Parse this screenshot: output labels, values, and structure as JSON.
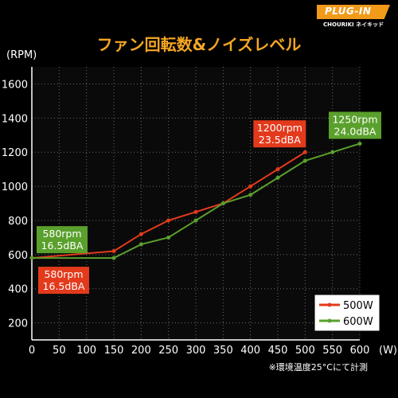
{
  "logo": {
    "brand": "PLUG-IN",
    "sub": "CHOURIKI ネイキッド"
  },
  "title": "ファン回転数&ノイズレベル",
  "chart_data": {
    "type": "line",
    "title": "ファン回転数&ノイズレベル",
    "ylabel": "(RPM)",
    "xlabel": "(W)",
    "xlim": [
      0,
      600
    ],
    "ylim": [
      100,
      1700
    ],
    "x_ticks": [
      "0",
      "50",
      "100",
      "150",
      "200",
      "250",
      "300",
      "350",
      "400",
      "450",
      "500",
      "550",
      "600"
    ],
    "y_ticks": [
      "200",
      "400",
      "600",
      "800",
      "1000",
      "1200",
      "1400",
      "1600"
    ],
    "grid": true,
    "legend_position": "bottom-right",
    "series": [
      {
        "name": "500W",
        "color": "#e33a1c",
        "x": [
          0,
          150,
          200,
          250,
          300,
          350,
          400,
          450,
          500
        ],
        "y": [
          580,
          620,
          720,
          800,
          850,
          900,
          1000,
          1100,
          1200
        ]
      },
      {
        "name": "600W",
        "color": "#5aa02c",
        "x": [
          0,
          150,
          200,
          250,
          300,
          350,
          400,
          450,
          500,
          550,
          600
        ],
        "y": [
          580,
          580,
          660,
          700,
          800,
          900,
          950,
          1050,
          1150,
          1200,
          1250
        ]
      }
    ],
    "annotations": [
      {
        "lines": [
          "580rpm",
          "16.5dBA"
        ],
        "color": "#5aa02c",
        "x": 0,
        "y": 580,
        "place": "above"
      },
      {
        "lines": [
          "580rpm",
          "16.5dBA"
        ],
        "color": "#e33a1c",
        "x": 0,
        "y": 580,
        "place": "below"
      },
      {
        "lines": [
          "1200rpm",
          "23.5dBA"
        ],
        "color": "#e33a1c",
        "x": 500,
        "y": 1200,
        "place": "above-left"
      },
      {
        "lines": [
          "1250rpm",
          "24.0dBA"
        ],
        "color": "#5aa02c",
        "x": 600,
        "y": 1250,
        "place": "above"
      }
    ],
    "footnote": "※環境温度25°Cにて計測"
  }
}
